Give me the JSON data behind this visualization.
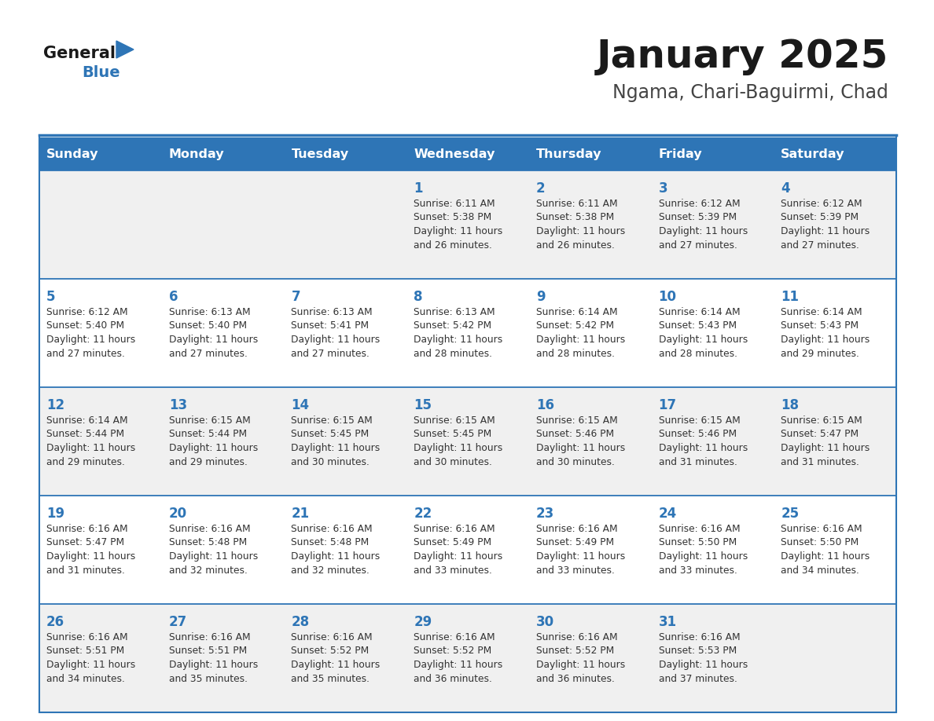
{
  "title": "January 2025",
  "subtitle": "Ngama, Chari-Baguirmi, Chad",
  "days_of_week": [
    "Sunday",
    "Monday",
    "Tuesday",
    "Wednesday",
    "Thursday",
    "Friday",
    "Saturday"
  ],
  "header_bg": "#2e75b6",
  "header_text_color": "#ffffff",
  "row_bg_even": "#f0f0f0",
  "row_bg_odd": "#ffffff",
  "separator_color": "#2e75b6",
  "day_number_color": "#2e75b6",
  "cell_text_color": "#333333",
  "title_color": "#1a1a1a",
  "subtitle_color": "#444444",
  "logo_general_color": "#1a1a1a",
  "logo_blue_color": "#2e75b6",
  "calendar_data": [
    [
      {
        "day": 0,
        "sunrise": "",
        "sunset": "",
        "daylight": ""
      },
      {
        "day": 0,
        "sunrise": "",
        "sunset": "",
        "daylight": ""
      },
      {
        "day": 0,
        "sunrise": "",
        "sunset": "",
        "daylight": ""
      },
      {
        "day": 1,
        "sunrise": "6:11 AM",
        "sunset": "5:38 PM",
        "daylight": "11 hours and 26 minutes."
      },
      {
        "day": 2,
        "sunrise": "6:11 AM",
        "sunset": "5:38 PM",
        "daylight": "11 hours and 26 minutes."
      },
      {
        "day": 3,
        "sunrise": "6:12 AM",
        "sunset": "5:39 PM",
        "daylight": "11 hours and 27 minutes."
      },
      {
        "day": 4,
        "sunrise": "6:12 AM",
        "sunset": "5:39 PM",
        "daylight": "11 hours and 27 minutes."
      }
    ],
    [
      {
        "day": 5,
        "sunrise": "6:12 AM",
        "sunset": "5:40 PM",
        "daylight": "11 hours and 27 minutes."
      },
      {
        "day": 6,
        "sunrise": "6:13 AM",
        "sunset": "5:40 PM",
        "daylight": "11 hours and 27 minutes."
      },
      {
        "day": 7,
        "sunrise": "6:13 AM",
        "sunset": "5:41 PM",
        "daylight": "11 hours and 27 minutes."
      },
      {
        "day": 8,
        "sunrise": "6:13 AM",
        "sunset": "5:42 PM",
        "daylight": "11 hours and 28 minutes."
      },
      {
        "day": 9,
        "sunrise": "6:14 AM",
        "sunset": "5:42 PM",
        "daylight": "11 hours and 28 minutes."
      },
      {
        "day": 10,
        "sunrise": "6:14 AM",
        "sunset": "5:43 PM",
        "daylight": "11 hours and 28 minutes."
      },
      {
        "day": 11,
        "sunrise": "6:14 AM",
        "sunset": "5:43 PM",
        "daylight": "11 hours and 29 minutes."
      }
    ],
    [
      {
        "day": 12,
        "sunrise": "6:14 AM",
        "sunset": "5:44 PM",
        "daylight": "11 hours and 29 minutes."
      },
      {
        "day": 13,
        "sunrise": "6:15 AM",
        "sunset": "5:44 PM",
        "daylight": "11 hours and 29 minutes."
      },
      {
        "day": 14,
        "sunrise": "6:15 AM",
        "sunset": "5:45 PM",
        "daylight": "11 hours and 30 minutes."
      },
      {
        "day": 15,
        "sunrise": "6:15 AM",
        "sunset": "5:45 PM",
        "daylight": "11 hours and 30 minutes."
      },
      {
        "day": 16,
        "sunrise": "6:15 AM",
        "sunset": "5:46 PM",
        "daylight": "11 hours and 30 minutes."
      },
      {
        "day": 17,
        "sunrise": "6:15 AM",
        "sunset": "5:46 PM",
        "daylight": "11 hours and 31 minutes."
      },
      {
        "day": 18,
        "sunrise": "6:15 AM",
        "sunset": "5:47 PM",
        "daylight": "11 hours and 31 minutes."
      }
    ],
    [
      {
        "day": 19,
        "sunrise": "6:16 AM",
        "sunset": "5:47 PM",
        "daylight": "11 hours and 31 minutes."
      },
      {
        "day": 20,
        "sunrise": "6:16 AM",
        "sunset": "5:48 PM",
        "daylight": "11 hours and 32 minutes."
      },
      {
        "day": 21,
        "sunrise": "6:16 AM",
        "sunset": "5:48 PM",
        "daylight": "11 hours and 32 minutes."
      },
      {
        "day": 22,
        "sunrise": "6:16 AM",
        "sunset": "5:49 PM",
        "daylight": "11 hours and 33 minutes."
      },
      {
        "day": 23,
        "sunrise": "6:16 AM",
        "sunset": "5:49 PM",
        "daylight": "11 hours and 33 minutes."
      },
      {
        "day": 24,
        "sunrise": "6:16 AM",
        "sunset": "5:50 PM",
        "daylight": "11 hours and 33 minutes."
      },
      {
        "day": 25,
        "sunrise": "6:16 AM",
        "sunset": "5:50 PM",
        "daylight": "11 hours and 34 minutes."
      }
    ],
    [
      {
        "day": 26,
        "sunrise": "6:16 AM",
        "sunset": "5:51 PM",
        "daylight": "11 hours and 34 minutes."
      },
      {
        "day": 27,
        "sunrise": "6:16 AM",
        "sunset": "5:51 PM",
        "daylight": "11 hours and 35 minutes."
      },
      {
        "day": 28,
        "sunrise": "6:16 AM",
        "sunset": "5:52 PM",
        "daylight": "11 hours and 35 minutes."
      },
      {
        "day": 29,
        "sunrise": "6:16 AM",
        "sunset": "5:52 PM",
        "daylight": "11 hours and 36 minutes."
      },
      {
        "day": 30,
        "sunrise": "6:16 AM",
        "sunset": "5:52 PM",
        "daylight": "11 hours and 36 minutes."
      },
      {
        "day": 31,
        "sunrise": "6:16 AM",
        "sunset": "5:53 PM",
        "daylight": "11 hours and 37 minutes."
      },
      {
        "day": 0,
        "sunrise": "",
        "sunset": "",
        "daylight": ""
      }
    ]
  ]
}
